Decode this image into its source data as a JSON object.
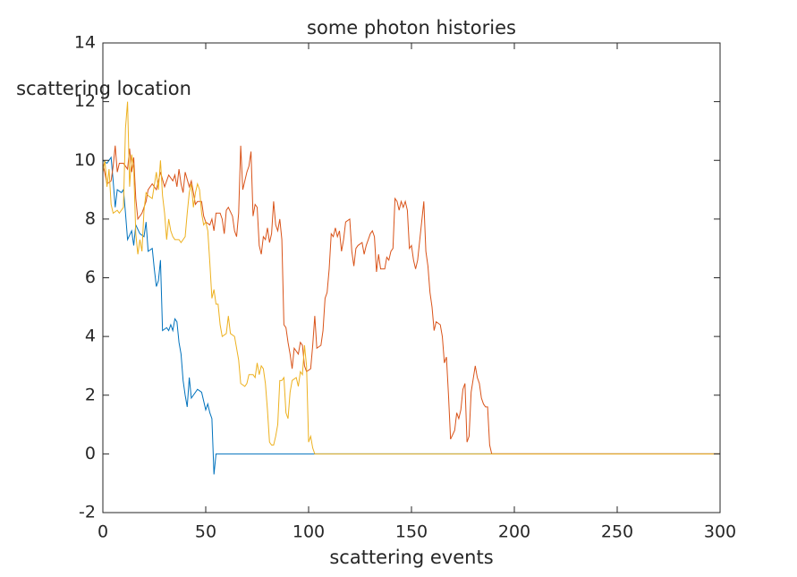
{
  "chart_data": {
    "type": "line",
    "title": "some photon histories",
    "xlabel": "scattering events",
    "ylabel": "scattering location",
    "xlim": [
      0,
      300
    ],
    "ylim": [
      -2,
      14
    ],
    "xticks": [
      0,
      50,
      100,
      150,
      200,
      250,
      300
    ],
    "yticks": [
      -2,
      0,
      2,
      4,
      6,
      8,
      10,
      12,
      14
    ],
    "grid": false,
    "series": [
      {
        "color": "#0072bd",
        "x": [
          0,
          2,
          4,
          5,
          6,
          7,
          9,
          10,
          11,
          12,
          14,
          15,
          16,
          18,
          20,
          21,
          22,
          24,
          25,
          26,
          27,
          28,
          29,
          31,
          32,
          33,
          34,
          35,
          36,
          37,
          38,
          39,
          40,
          41,
          42,
          43,
          46,
          48,
          50,
          51,
          52,
          53,
          54,
          55,
          300
        ],
        "values": [
          10,
          9.9,
          10.1,
          9.3,
          8.4,
          9,
          8.9,
          9,
          8.2,
          7.3,
          7.6,
          7.1,
          7.8,
          7.5,
          7.4,
          7.9,
          6.9,
          7,
          6.3,
          5.7,
          5.9,
          6.6,
          4.2,
          4.3,
          4.2,
          4.4,
          4.2,
          4.6,
          4.5,
          3.8,
          3.4,
          2.5,
          2,
          1.6,
          2.6,
          1.9,
          2.2,
          2.1,
          1.5,
          1.7,
          1.4,
          1.2,
          -0.7,
          0,
          0
        ]
      },
      {
        "color": "#d95319",
        "x": [
          0,
          2,
          4,
          5,
          6,
          7,
          8,
          10,
          12,
          13,
          14,
          15,
          16,
          17,
          19,
          21,
          22,
          24,
          26,
          28,
          30,
          32,
          34,
          35,
          36,
          37,
          38,
          39,
          40,
          42,
          43,
          45,
          46,
          48,
          49,
          50,
          52,
          53,
          54,
          55,
          57,
          58,
          59,
          60,
          61,
          63,
          64,
          65,
          66,
          67,
          68,
          70,
          71,
          72,
          73,
          74,
          75,
          76,
          77,
          78,
          79,
          80,
          81,
          82,
          83,
          84,
          85,
          86,
          87,
          88,
          89,
          90,
          91,
          92,
          93,
          95,
          96,
          97,
          98,
          99,
          101,
          102,
          103,
          104,
          106,
          107,
          108,
          109,
          110,
          111,
          112,
          113,
          114,
          115,
          116,
          117,
          118,
          120,
          121,
          122,
          123,
          124,
          126,
          127,
          128,
          130,
          131,
          132,
          133,
          134,
          135,
          137,
          138,
          139,
          140,
          141,
          142,
          143,
          144,
          145,
          146,
          147,
          148,
          149,
          150,
          151,
          152,
          153,
          156,
          157,
          158,
          159,
          160,
          161,
          162,
          164,
          165,
          166,
          167,
          168,
          169,
          171,
          172,
          173,
          174,
          175,
          176,
          177,
          178,
          179,
          181,
          182,
          183,
          184,
          185,
          186,
          187,
          188,
          189,
          300
        ],
        "values": [
          9.9,
          9.2,
          9.3,
          9.8,
          10.5,
          9.6,
          9.9,
          9.9,
          9.7,
          10.4,
          9.6,
          10.1,
          8.7,
          8,
          8.2,
          8.6,
          9,
          9.2,
          9,
          9.6,
          9.1,
          9.5,
          9.3,
          9.5,
          9.1,
          9.7,
          9.2,
          8.9,
          9.6,
          9.1,
          9.3,
          8.5,
          8.6,
          8.6,
          8.1,
          7.9,
          7.8,
          8,
          7.6,
          8.2,
          8.2,
          8,
          7.5,
          8.3,
          8.4,
          8.1,
          7.6,
          7.4,
          8.2,
          10.5,
          9,
          9.6,
          9.8,
          10.3,
          8.1,
          8.5,
          8.4,
          7.1,
          6.8,
          7.4,
          7.3,
          7.7,
          7.2,
          7.5,
          8.6,
          7.8,
          7.6,
          8,
          7.3,
          4.4,
          4.3,
          3.8,
          3.4,
          2.9,
          3.6,
          3.4,
          3.8,
          3.7,
          3,
          2.8,
          2.9,
          3.7,
          4.7,
          3.6,
          3.7,
          4.2,
          5.3,
          5.5,
          6.3,
          7.5,
          7.4,
          7.7,
          7.4,
          7.6,
          6.9,
          7.3,
          7.9,
          8,
          6.9,
          6.4,
          7,
          7.1,
          7.2,
          6.8,
          7.1,
          7.5,
          7.6,
          7.4,
          6.2,
          6.8,
          6.3,
          6.3,
          6.7,
          6.6,
          6.9,
          7,
          8.7,
          8.6,
          8.3,
          8.6,
          8.4,
          8.6,
          8.3,
          7,
          7.1,
          6.6,
          6.3,
          6.6,
          8.6,
          6.9,
          6.4,
          5.5,
          5,
          4.2,
          4.5,
          4.4,
          4,
          3.1,
          3.3,
          2,
          0.5,
          0.8,
          1.4,
          1.2,
          1.5,
          2.2,
          2.4,
          0.4,
          0.6,
          2.1,
          3,
          2.6,
          2.4,
          1.9,
          1.7,
          1.6,
          1.6,
          0.3,
          0,
          0
        ]
      },
      {
        "color": "#edb120",
        "x": [
          0,
          1,
          2,
          3,
          4,
          5,
          7,
          8,
          10,
          11,
          12,
          13,
          14,
          15,
          16,
          17,
          18,
          19,
          20,
          21,
          22,
          24,
          26,
          27,
          28,
          29,
          30,
          31,
          32,
          33,
          34,
          35,
          37,
          38,
          40,
          41,
          42,
          43,
          44,
          45,
          46,
          47,
          48,
          49,
          50,
          51,
          52,
          53,
          54,
          55,
          56,
          57,
          58,
          60,
          61,
          62,
          64,
          66,
          67,
          69,
          70,
          71,
          73,
          74,
          75,
          76,
          77,
          78,
          79,
          80,
          81,
          82,
          83,
          84,
          85,
          86,
          87,
          88,
          89,
          90,
          91,
          92,
          94,
          95,
          96,
          97,
          98,
          99,
          100,
          101,
          102,
          103,
          300
        ],
        "values": [
          9.6,
          10,
          9.1,
          9.7,
          8.5,
          8.2,
          8.3,
          8.2,
          8.4,
          11.1,
          12,
          9.1,
          10.2,
          9.7,
          7.5,
          6.8,
          7.3,
          6.9,
          8.3,
          8.9,
          8.8,
          8.7,
          9.6,
          9,
          10,
          8.8,
          8.2,
          7.3,
          8,
          7.6,
          7.4,
          7.3,
          7.3,
          7.2,
          7.4,
          8.2,
          8.9,
          9.2,
          8.4,
          8.9,
          9.2,
          9,
          8.2,
          7.8,
          7.9,
          7.6,
          6.5,
          5.3,
          5.6,
          5.1,
          5.1,
          4.4,
          4,
          4.1,
          4.7,
          4.1,
          4,
          3.2,
          2.4,
          2.3,
          2.4,
          2.7,
          2.7,
          2.6,
          3.1,
          2.7,
          3,
          2.9,
          2.4,
          1.5,
          0.4,
          0.3,
          0.3,
          0.6,
          1,
          2.5,
          2.5,
          2.6,
          1.4,
          1.2,
          2.1,
          2.5,
          2.6,
          2.3,
          2.8,
          2.7,
          3.7,
          3,
          0.4,
          0.6,
          0.2,
          0,
          0
        ]
      }
    ]
  }
}
